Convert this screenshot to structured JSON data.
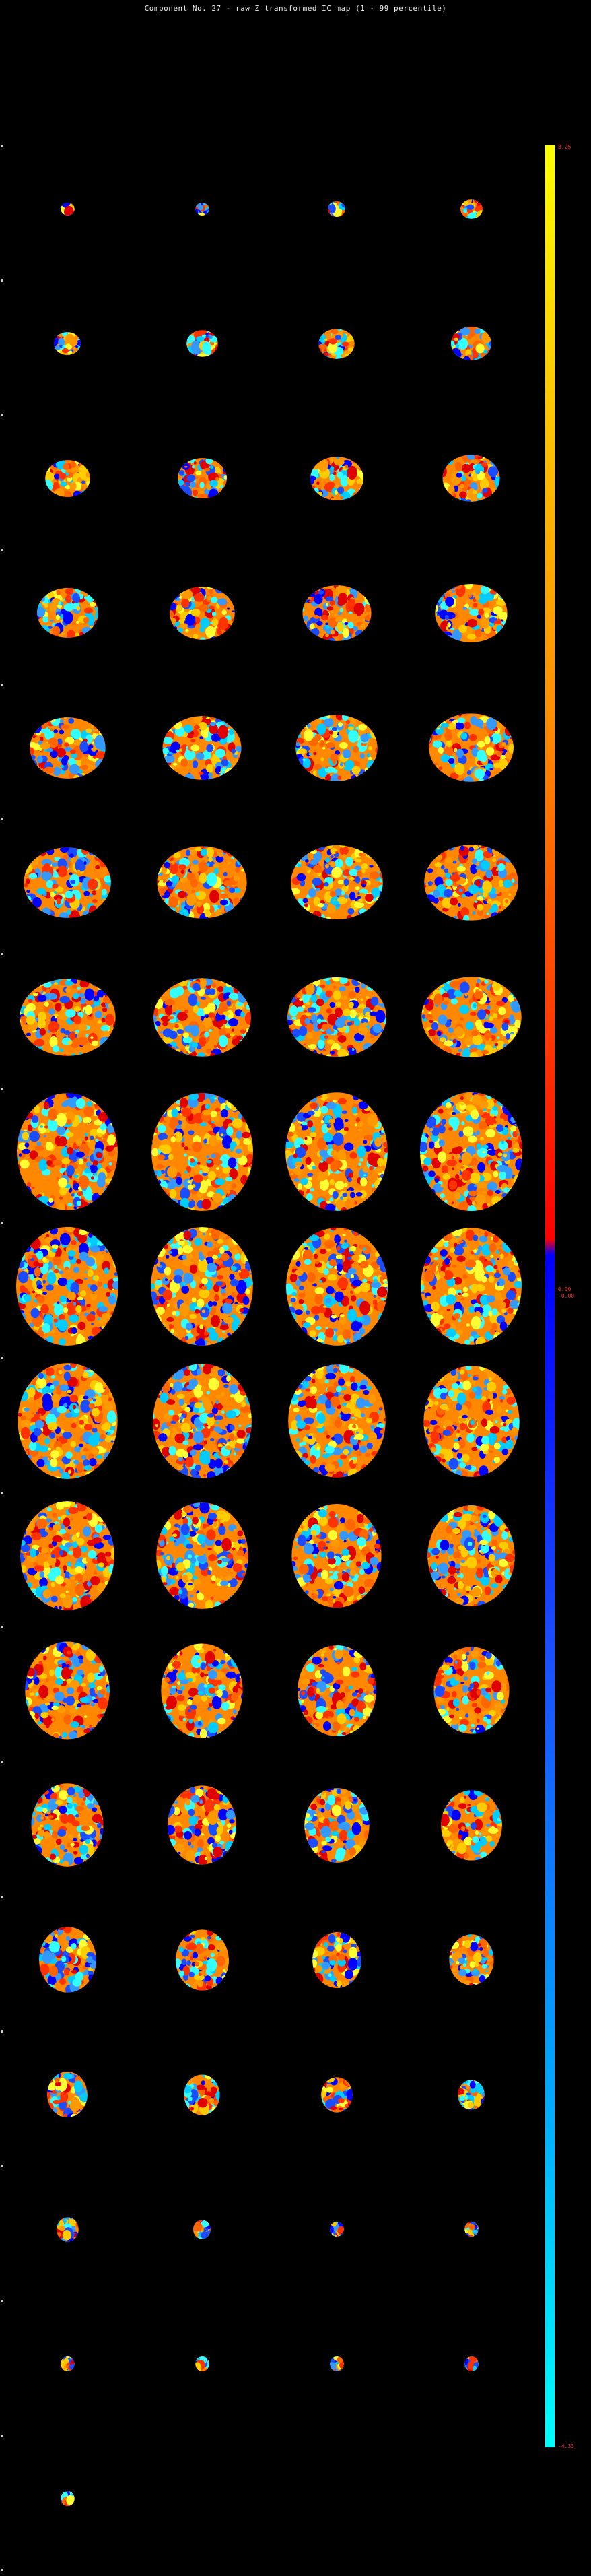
{
  "title": "Component No. 27 - raw Z transformed IC map (1 - 99 percentile)",
  "colorbar": {
    "max_label": "8.25",
    "mid_label_pos": "0.00",
    "mid_label_neg": "-0.00",
    "min_label": "-4.33",
    "colors": {
      "positive_high": "#ffff00",
      "positive_mid": "#ff8c00",
      "positive_low": "#ff0000",
      "negative_low": "#0000ff",
      "negative_mid": "#1a4dff",
      "negative_high": "#00ffff"
    }
  },
  "grid": {
    "columns": 4,
    "rows": 18,
    "slice_count": 69
  }
}
